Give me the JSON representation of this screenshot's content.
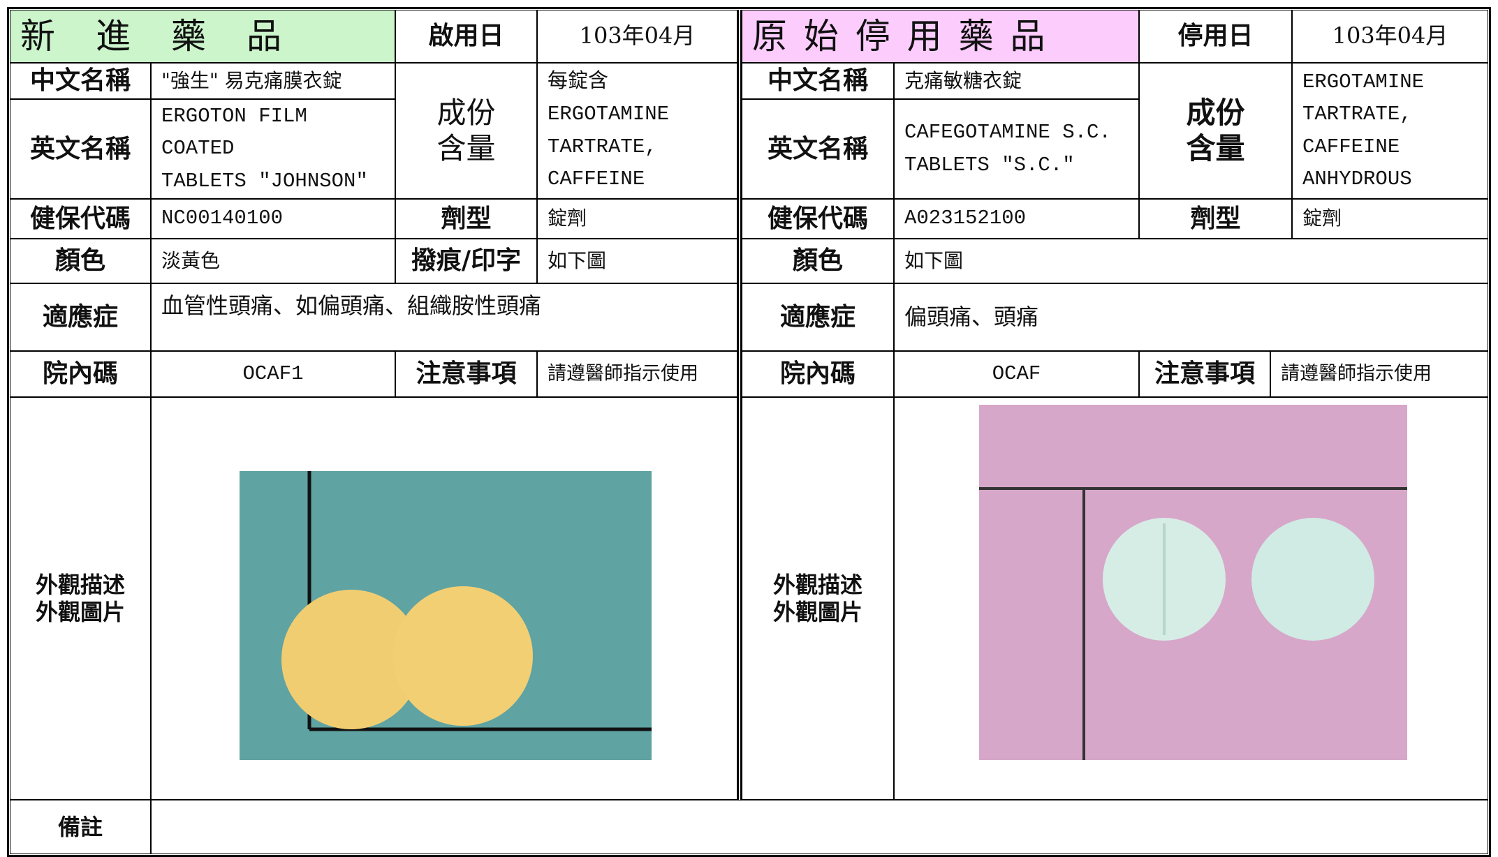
{
  "left": {
    "title": "新　進　藥　品",
    "date_label": "啟用日",
    "date": "103年04月",
    "chinese_name_label": "中文名稱",
    "chinese_name": "\"強生\" 易克痛膜衣錠",
    "english_name_label": "英文名稱",
    "english_name": [
      "ERGOTON FILM COATED",
      "TABLETS \"JOHNSON\""
    ],
    "ingredient_label": [
      "成份",
      "含量"
    ],
    "ingredient": [
      "每錠含",
      "ERGOTAMINE",
      "TARTRATE,",
      "CAFFEINE"
    ],
    "nhi_code_label": "健保代碼",
    "nhi_code": "NC00140100",
    "form_label": "劑型",
    "form": "錠劑",
    "color_label": "顏色",
    "color": "淡黃色",
    "imprint_label": "撥痕/印字",
    "imprint": "如下圖",
    "indication_label": "適應症",
    "indication": "血管性頭痛、如偏頭痛、組織胺性頭痛",
    "hospital_code_label": "院內碼",
    "hospital_code": "OCAF1",
    "caution_label": "注意事項",
    "caution": "請遵醫師指示使用",
    "appearance_label": [
      "外觀描述",
      "外觀圖片"
    ],
    "remark_label": "備註"
  },
  "right": {
    "title": "原 始 停 用 藥 品",
    "date_label": "停用日",
    "date": "103年04月",
    "chinese_name_label": "中文名稱",
    "chinese_name": "克痛敏糖衣錠",
    "english_name_label": "英文名稱",
    "english_name": [
      "CAFEGOTAMINE S.C.",
      "TABLETS \"S.C.\""
    ],
    "ingredient_label": [
      "成份",
      "含量"
    ],
    "ingredient": [
      "ERGOTAMINE",
      "TARTRATE,",
      "CAFFEINE",
      "ANHYDROUS"
    ],
    "nhi_code_label": "健保代碼",
    "nhi_code": "A023152100",
    "form_label": "劑型",
    "form": "錠劑",
    "color_label": "顏色",
    "color": "如下圖",
    "indication_label": "適應症",
    "indication": "偏頭痛、頭痛",
    "hospital_code_label": "院內碼",
    "hospital_code": "OCAF",
    "caution_label": "注意事項",
    "caution": "請遵醫師指示使用",
    "appearance_label": [
      "外觀描述",
      "外觀圖片"
    ]
  }
}
